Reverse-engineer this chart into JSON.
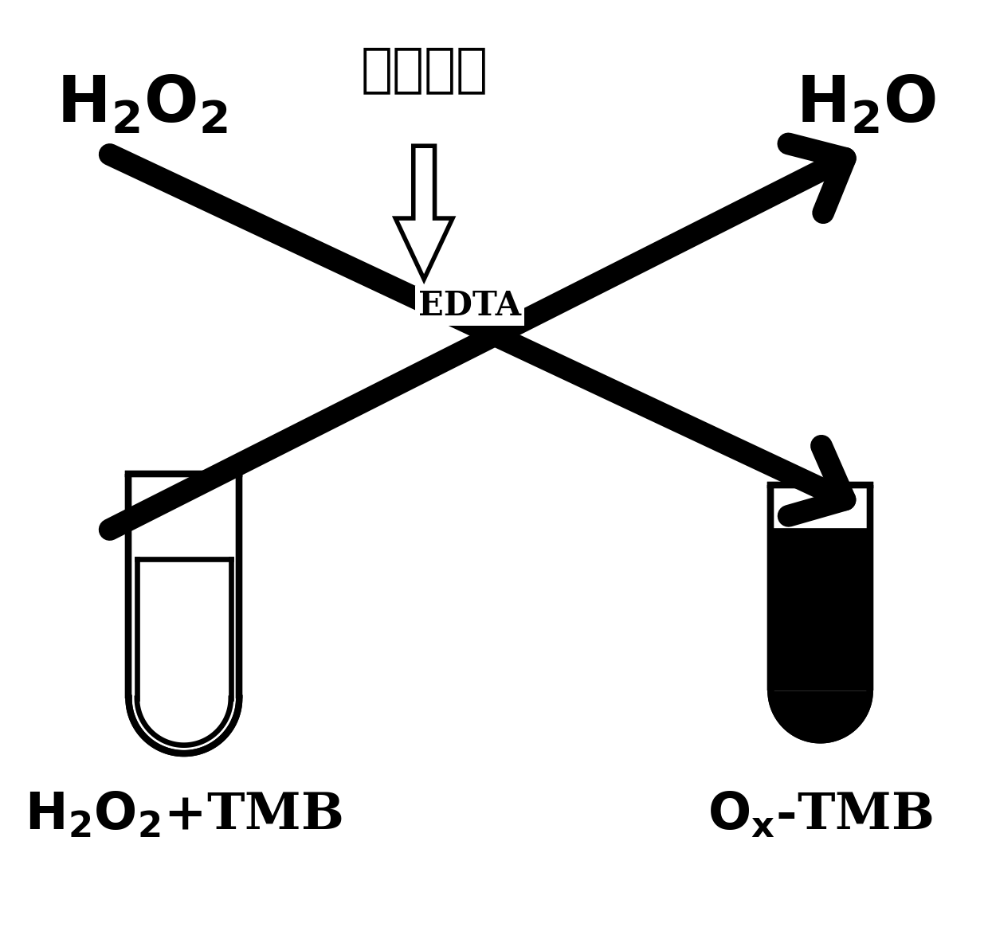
{
  "bg_color": "#ffffff",
  "h2o2_text": "$\\mathbf{H_2O_2}$",
  "h2o_text": "$\\mathbf{H_2O}$",
  "uv_chinese": "紫外光照",
  "edta_text": "EDTA",
  "left_label_1": "$\\mathbf{H_2O_2}$",
  "left_label_2": "+TMB",
  "right_label_1": "$\\mathbf{O_x}$",
  "right_label_2": "-TMB",
  "text_color": "#000000",
  "arrow_lw": 18,
  "tube_lw": 5
}
